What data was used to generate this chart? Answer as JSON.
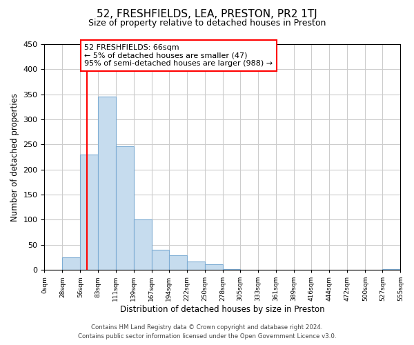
{
  "title": "52, FRESHFIELDS, LEA, PRESTON, PR2 1TJ",
  "subtitle": "Size of property relative to detached houses in Preston",
  "xlabel": "Distribution of detached houses by size in Preston",
  "ylabel": "Number of detached properties",
  "bar_edges": [
    0,
    28,
    56,
    83,
    111,
    139,
    167,
    194,
    222,
    250,
    278,
    305,
    333,
    361,
    389,
    416,
    444,
    472,
    500,
    527,
    555
  ],
  "bar_heights": [
    0,
    25,
    230,
    345,
    247,
    101,
    40,
    29,
    17,
    11,
    2,
    0,
    0,
    0,
    0,
    0,
    0,
    0,
    0,
    1
  ],
  "bar_color": "#c6dcee",
  "bar_edgecolor": "#7eadd4",
  "vline_x": 66,
  "vline_color": "red",
  "ylim": [
    0,
    450
  ],
  "xlim": [
    0,
    555
  ],
  "annotation_text": "52 FRESHFIELDS: 66sqm\n← 5% of detached houses are smaller (47)\n95% of semi-detached houses are larger (988) →",
  "footnote1": "Contains HM Land Registry data © Crown copyright and database right 2024.",
  "footnote2": "Contains public sector information licensed under the Open Government Licence v3.0.",
  "tick_labels": [
    "0sqm",
    "28sqm",
    "56sqm",
    "83sqm",
    "111sqm",
    "139sqm",
    "167sqm",
    "194sqm",
    "222sqm",
    "250sqm",
    "278sqm",
    "305sqm",
    "333sqm",
    "361sqm",
    "389sqm",
    "416sqm",
    "444sqm",
    "472sqm",
    "500sqm",
    "527sqm",
    "555sqm"
  ],
  "yticks": [
    0,
    50,
    100,
    150,
    200,
    250,
    300,
    350,
    400,
    450
  ]
}
